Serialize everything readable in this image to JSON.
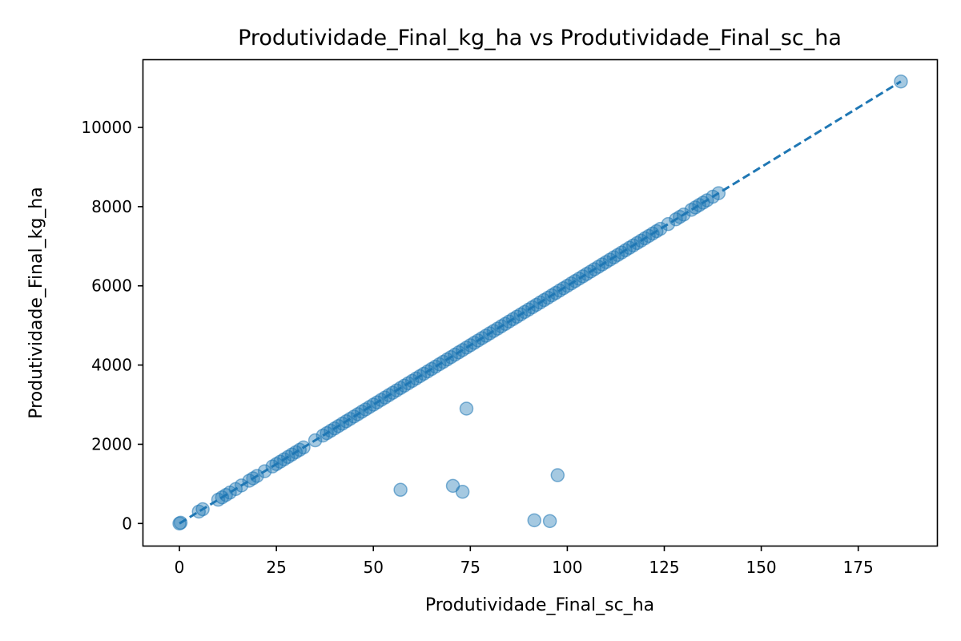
{
  "chart_data": {
    "type": "scatter",
    "title": "Produtividade_Final_kg_ha vs Produtividade_Final_sc_ha",
    "xlabel": "Produtividade_Final_sc_ha",
    "ylabel": "Produtividade_Final_kg_ha",
    "xlim": [
      -9.3,
      195.3
    ],
    "ylim": [
      -560,
      11700
    ],
    "xticks": [
      0,
      25,
      50,
      75,
      100,
      125,
      150,
      175
    ],
    "yticks": [
      0,
      2000,
      4000,
      6000,
      8000,
      10000
    ],
    "grid": false,
    "legend": "none",
    "colors": {
      "points": "#1f77b4",
      "trend": "#1f77b4"
    },
    "trend_line": {
      "style": "dashed",
      "x": [
        0,
        186
      ],
      "y": [
        0,
        11160
      ]
    },
    "series": [
      {
        "values": [
          {
            "x": 0,
            "y": 0
          },
          {
            "x": 0.3,
            "y": 18
          },
          {
            "x": 5,
            "y": 300
          },
          {
            "x": 6,
            "y": 360
          },
          {
            "x": 10,
            "y": 600
          },
          {
            "x": 11,
            "y": 660
          },
          {
            "x": 12,
            "y": 720
          },
          {
            "x": 13,
            "y": 780
          },
          {
            "x": 14.5,
            "y": 870
          },
          {
            "x": 16,
            "y": 960
          },
          {
            "x": 18,
            "y": 1080
          },
          {
            "x": 19,
            "y": 1140
          },
          {
            "x": 20,
            "y": 1200
          },
          {
            "x": 22,
            "y": 1320
          },
          {
            "x": 24,
            "y": 1440
          },
          {
            "x": 25,
            "y": 1500
          },
          {
            "x": 26,
            "y": 1560
          },
          {
            "x": 27,
            "y": 1620
          },
          {
            "x": 28,
            "y": 1680
          },
          {
            "x": 29,
            "y": 1740
          },
          {
            "x": 30,
            "y": 1800
          },
          {
            "x": 31,
            "y": 1860
          },
          {
            "x": 32,
            "y": 1920
          },
          {
            "x": 35,
            "y": 2100
          },
          {
            "x": 37,
            "y": 2220
          },
          {
            "x": 38,
            "y": 2280
          },
          {
            "x": 39,
            "y": 2340
          },
          {
            "x": 40,
            "y": 2400
          },
          {
            "x": 41,
            "y": 2460
          },
          {
            "x": 42,
            "y": 2520
          },
          {
            "x": 43,
            "y": 2580
          },
          {
            "x": 44,
            "y": 2640
          },
          {
            "x": 45,
            "y": 2700
          },
          {
            "x": 46,
            "y": 2760
          },
          {
            "x": 47,
            "y": 2820
          },
          {
            "x": 48,
            "y": 2880
          },
          {
            "x": 49,
            "y": 2940
          },
          {
            "x": 50,
            "y": 3000
          },
          {
            "x": 51,
            "y": 3060
          },
          {
            "x": 52,
            "y": 3120
          },
          {
            "x": 53,
            "y": 3180
          },
          {
            "x": 54,
            "y": 3240
          },
          {
            "x": 55,
            "y": 3300
          },
          {
            "x": 56,
            "y": 3360
          },
          {
            "x": 57,
            "y": 3420
          },
          {
            "x": 58,
            "y": 3480
          },
          {
            "x": 59,
            "y": 3540
          },
          {
            "x": 60,
            "y": 3600
          },
          {
            "x": 61,
            "y": 3660
          },
          {
            "x": 62,
            "y": 3720
          },
          {
            "x": 63,
            "y": 3780
          },
          {
            "x": 64,
            "y": 3840
          },
          {
            "x": 65,
            "y": 3900
          },
          {
            "x": 66,
            "y": 3960
          },
          {
            "x": 67,
            "y": 4020
          },
          {
            "x": 68,
            "y": 4080
          },
          {
            "x": 69,
            "y": 4140
          },
          {
            "x": 70,
            "y": 4200
          },
          {
            "x": 71,
            "y": 4260
          },
          {
            "x": 72,
            "y": 4320
          },
          {
            "x": 73,
            "y": 4380
          },
          {
            "x": 74,
            "y": 4440
          },
          {
            "x": 75,
            "y": 4500
          },
          {
            "x": 76,
            "y": 4560
          },
          {
            "x": 77,
            "y": 4620
          },
          {
            "x": 78,
            "y": 4680
          },
          {
            "x": 79,
            "y": 4740
          },
          {
            "x": 80,
            "y": 4800
          },
          {
            "x": 81,
            "y": 4860
          },
          {
            "x": 82,
            "y": 4920
          },
          {
            "x": 83,
            "y": 4980
          },
          {
            "x": 84,
            "y": 5040
          },
          {
            "x": 85,
            "y": 5100
          },
          {
            "x": 86,
            "y": 5160
          },
          {
            "x": 87,
            "y": 5220
          },
          {
            "x": 88,
            "y": 5280
          },
          {
            "x": 89,
            "y": 5340
          },
          {
            "x": 90,
            "y": 5400
          },
          {
            "x": 91,
            "y": 5460
          },
          {
            "x": 92,
            "y": 5520
          },
          {
            "x": 93,
            "y": 5580
          },
          {
            "x": 94,
            "y": 5640
          },
          {
            "x": 95,
            "y": 5700
          },
          {
            "x": 96,
            "y": 5760
          },
          {
            "x": 97,
            "y": 5820
          },
          {
            "x": 98,
            "y": 5880
          },
          {
            "x": 99,
            "y": 5940
          },
          {
            "x": 100,
            "y": 6000
          },
          {
            "x": 101,
            "y": 6060
          },
          {
            "x": 102,
            "y": 6120
          },
          {
            "x": 103,
            "y": 6180
          },
          {
            "x": 104,
            "y": 6240
          },
          {
            "x": 105,
            "y": 6300
          },
          {
            "x": 106,
            "y": 6360
          },
          {
            "x": 107,
            "y": 6420
          },
          {
            "x": 108,
            "y": 6480
          },
          {
            "x": 109,
            "y": 6540
          },
          {
            "x": 110,
            "y": 6600
          },
          {
            "x": 111,
            "y": 6660
          },
          {
            "x": 112,
            "y": 6720
          },
          {
            "x": 113,
            "y": 6780
          },
          {
            "x": 114,
            "y": 6840
          },
          {
            "x": 115,
            "y": 6900
          },
          {
            "x": 116,
            "y": 6960
          },
          {
            "x": 117,
            "y": 7020
          },
          {
            "x": 118,
            "y": 7080
          },
          {
            "x": 119,
            "y": 7140
          },
          {
            "x": 120,
            "y": 7200
          },
          {
            "x": 121,
            "y": 7260
          },
          {
            "x": 122,
            "y": 7320
          },
          {
            "x": 123,
            "y": 7380
          },
          {
            "x": 124,
            "y": 7440
          },
          {
            "x": 126,
            "y": 7560
          },
          {
            "x": 128,
            "y": 7680
          },
          {
            "x": 129,
            "y": 7740
          },
          {
            "x": 130,
            "y": 7800
          },
          {
            "x": 132,
            "y": 7920
          },
          {
            "x": 133,
            "y": 7980
          },
          {
            "x": 134,
            "y": 8040
          },
          {
            "x": 135,
            "y": 8100
          },
          {
            "x": 136,
            "y": 8160
          },
          {
            "x": 137.5,
            "y": 8250
          },
          {
            "x": 139,
            "y": 8340
          },
          {
            "x": 186,
            "y": 11160
          },
          {
            "x": 57,
            "y": 850
          },
          {
            "x": 70.5,
            "y": 950
          },
          {
            "x": 73,
            "y": 800
          },
          {
            "x": 74,
            "y": 2900
          },
          {
            "x": 91.5,
            "y": 80
          },
          {
            "x": 95.5,
            "y": 60
          },
          {
            "x": 97.5,
            "y": 1220
          }
        ]
      }
    ]
  }
}
